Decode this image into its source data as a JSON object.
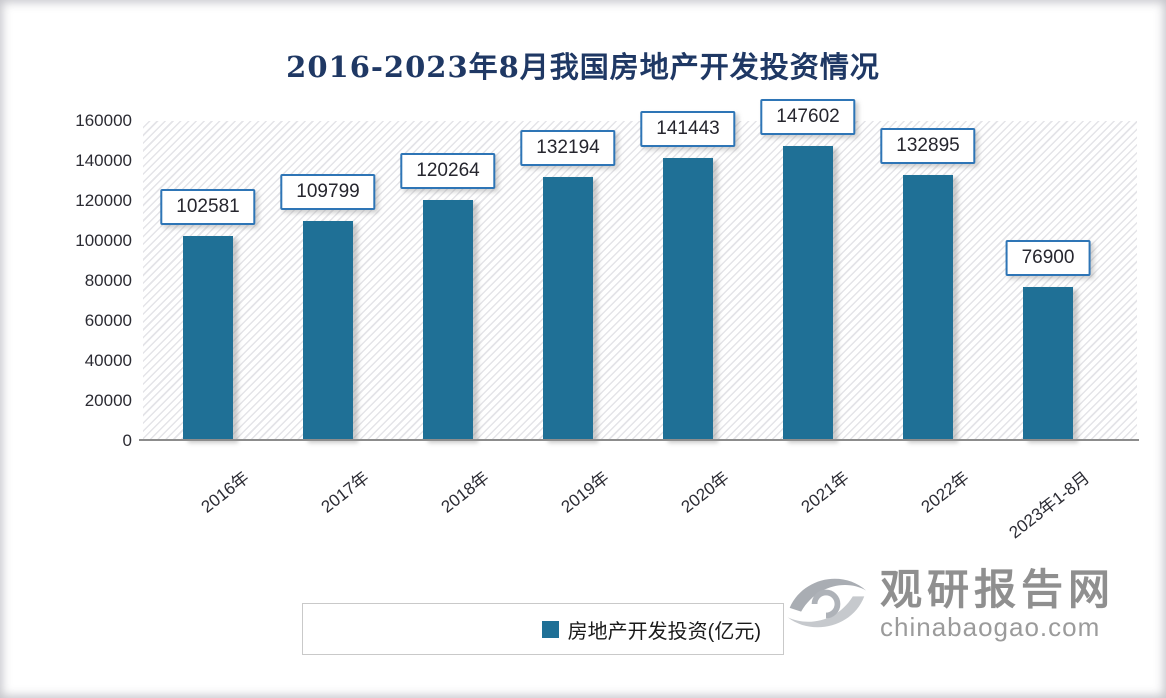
{
  "chart_data": {
    "type": "bar",
    "title": "2016-2023年8月我国房地产开发投资情况",
    "categories": [
      "2016年",
      "2017年",
      "2018年",
      "2019年",
      "2020年",
      "2021年",
      "2022年",
      "2023年1-8月"
    ],
    "values": [
      102581,
      109799,
      120264,
      132194,
      141443,
      147602,
      132895,
      76900
    ],
    "series": [
      {
        "name": "房地产开发投资(亿元)",
        "values": [
          102581,
          109799,
          120264,
          132194,
          141443,
          147602,
          132895,
          76900
        ]
      }
    ],
    "xlabel": "",
    "ylabel": "",
    "ylim": [
      0,
      160000
    ],
    "yticks": [
      0,
      20000,
      40000,
      60000,
      80000,
      100000,
      120000,
      140000,
      160000
    ],
    "grid": false,
    "data_labels": true,
    "legend_position": "bottom",
    "colors": {
      "bar": "#1F7096",
      "label_box_border": "#2E75B6",
      "title": "#1F3864",
      "axis_text": "#2B2B33",
      "baseline": "#8C8C8C",
      "legend_border": "#C9C9C9"
    }
  },
  "legend": {
    "label": "房地产开发投资(亿元)"
  },
  "watermark": {
    "brand": "观研报告网",
    "domain": "chinabaogao.com",
    "logo": "eye-swoosh-logo",
    "color": "#8F8F8F"
  }
}
